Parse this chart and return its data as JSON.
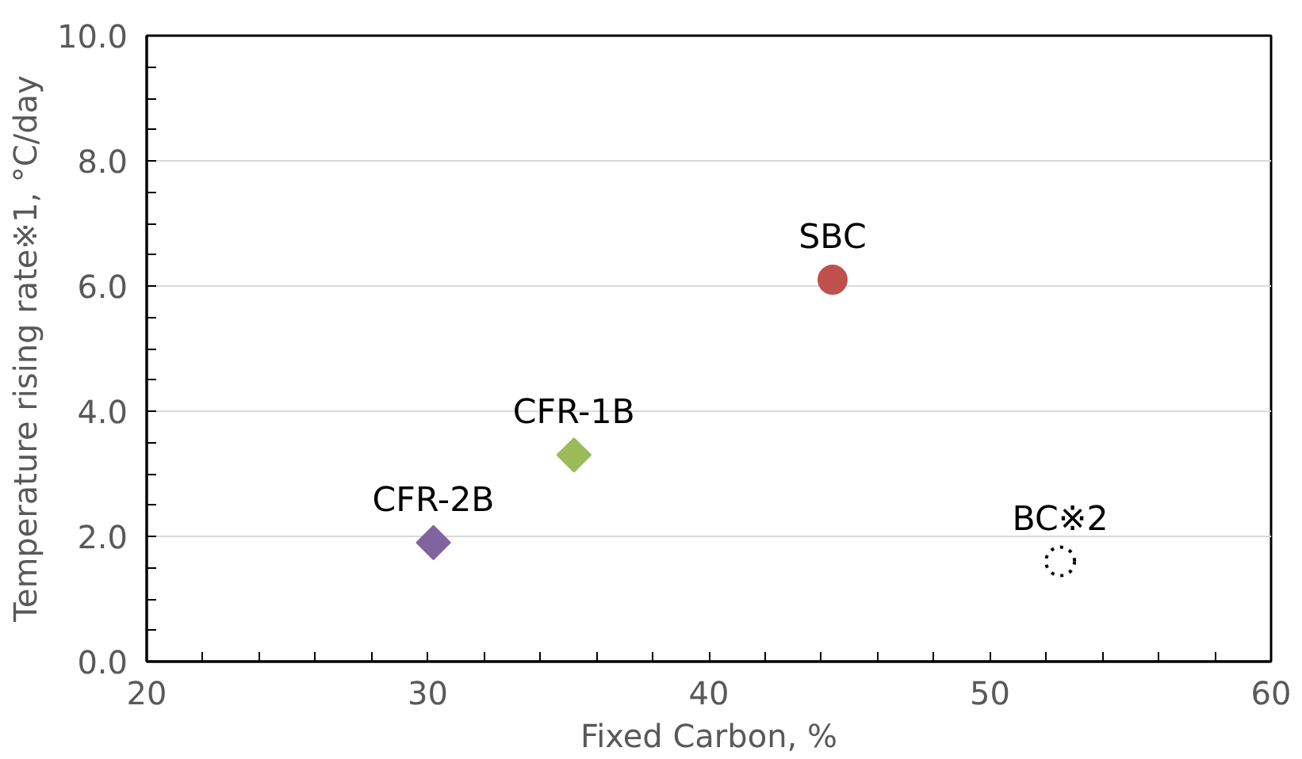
{
  "chart_data": {
    "type": "scatter",
    "xlabel": "Fixed Carbon, %",
    "ylabel": "Temperature rising rate※1, °C/day",
    "xlim": [
      20,
      60
    ],
    "xticks": [
      20,
      30,
      40,
      50,
      60
    ],
    "ylim": [
      0,
      10
    ],
    "yticks": [
      {
        "value": 0,
        "label": "0.0"
      },
      {
        "value": 2,
        "label": "2.0"
      },
      {
        "value": 4,
        "label": "4.0"
      },
      {
        "value": 6,
        "label": "6.0"
      },
      {
        "value": 8,
        "label": "8.0"
      },
      {
        "value": 10,
        "label": "10.0"
      }
    ],
    "grid": "y",
    "legend": false,
    "series": [
      {
        "name": "SBC",
        "color": "#c0504d",
        "marker": "circle",
        "x": [
          44.4
        ],
        "values": [
          6.1
        ]
      },
      {
        "name": "CFR-1B",
        "color": "#9bbb59",
        "marker": "diamond",
        "x": [
          35.2
        ],
        "values": [
          3.3
        ]
      },
      {
        "name": "CFR-2B",
        "color": "#8064a2",
        "marker": "diamond",
        "x": [
          30.2
        ],
        "values": [
          1.9
        ]
      },
      {
        "name": "BC※2",
        "color": "#000000",
        "marker": "circle",
        "line_style": "dotted",
        "x": [
          52.5
        ],
        "values": [
          1.6
        ]
      }
    ]
  }
}
